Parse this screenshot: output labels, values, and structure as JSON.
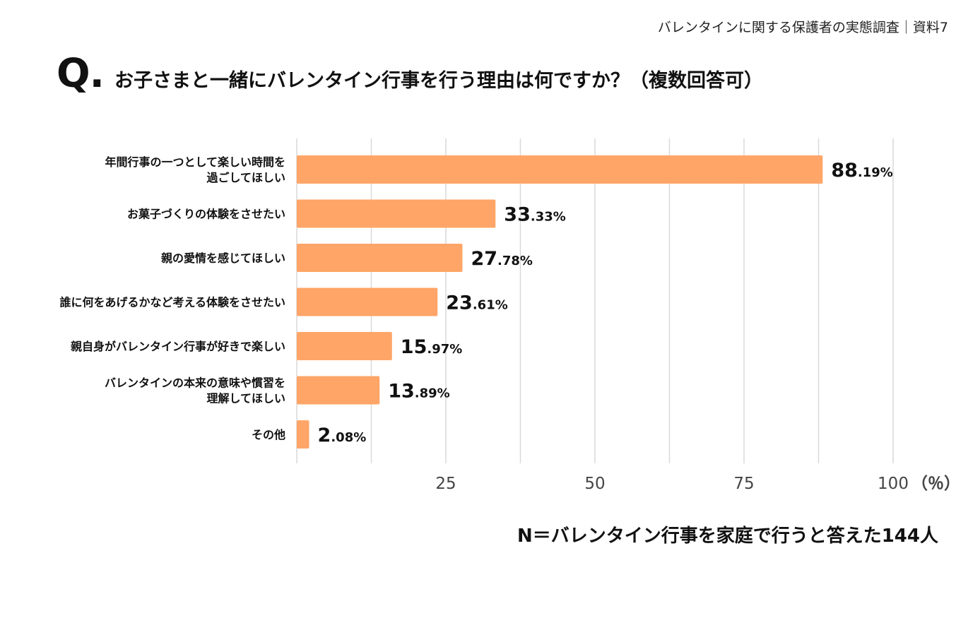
{
  "header": {
    "caption": "バレンタインに関する保護者の実態調査｜資料7",
    "q_mark": "Q.",
    "question": "お子さまと一緒にバレンタイン行事を行う理由は何ですか？（複数回答可）"
  },
  "chart_data": {
    "type": "bar",
    "orientation": "horizontal",
    "title": "お子さまと一緒にバレンタイン行事を行う理由は何ですか？（複数回答可）",
    "categories": [
      [
        "年間行事の一つとして楽しい時間を",
        "過ごしてほしい"
      ],
      [
        "お菓子づくりの体験をさせたい"
      ],
      [
        "親の愛情を感じてほしい"
      ],
      [
        "誰に何をあげるかなど考える体験をさせたい"
      ],
      [
        "親自身がバレンタイン行事が好きで楽しい"
      ],
      [
        "バレンタインの本来の意味や慣習を",
        "理解してほしい"
      ],
      [
        "その他"
      ]
    ],
    "values": [
      88.19,
      33.33,
      27.78,
      23.61,
      15.97,
      13.89,
      2.08
    ],
    "value_labels": [
      {
        "int": "88",
        "dec": ".19%"
      },
      {
        "int": "33",
        "dec": ".33%"
      },
      {
        "int": "27",
        "dec": ".78%"
      },
      {
        "int": "23",
        "dec": ".61%"
      },
      {
        "int": "15",
        "dec": ".97%"
      },
      {
        "int": "13",
        "dec": ".89%"
      },
      {
        "int": "2",
        "dec": ".08%"
      }
    ],
    "xlim": [
      0,
      100
    ],
    "major_ticks": [
      25,
      50,
      75,
      100
    ],
    "minor_gridlines": [
      0,
      12.5,
      37.5,
      62.5,
      87.5
    ],
    "tick_labels": [
      "25",
      "50",
      "75",
      "100"
    ],
    "xlabel_unit": "（％）",
    "grid": true,
    "bar_color": "#FFA567",
    "grid_color": "#D9D9D9"
  },
  "footnote": "N＝バレンタイン行事を家庭で行うと答えた144人"
}
